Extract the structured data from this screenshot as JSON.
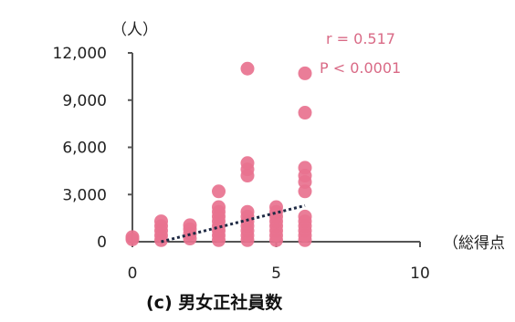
{
  "chart_data": {
    "type": "scatter",
    "title": "",
    "caption": "(c) 男女正社員数",
    "ylabel": "（人）",
    "xlabel": "（総得点",
    "xlim": [
      0,
      10
    ],
    "ylim": [
      0,
      12000
    ],
    "xticks": [
      "0",
      "5",
      "10"
    ],
    "yticks": [
      "0",
      "3,000",
      "6,000",
      "9,000",
      "12,000"
    ],
    "grid": false,
    "annotations": [
      "r = 0.517",
      "P < 0.0001"
    ],
    "series": [
      {
        "points": [
          [
            0,
            150
          ],
          [
            0,
            300
          ],
          [
            1,
            100
          ],
          [
            1,
            400
          ],
          [
            1,
            700
          ],
          [
            1,
            1000
          ],
          [
            1,
            1300
          ],
          [
            2,
            200
          ],
          [
            2,
            500
          ],
          [
            2,
            800
          ],
          [
            2,
            1050
          ],
          [
            3,
            100
          ],
          [
            3,
            400
          ],
          [
            3,
            700
          ],
          [
            3,
            1000
          ],
          [
            3,
            1300
          ],
          [
            3,
            1600
          ],
          [
            3,
            1900
          ],
          [
            3,
            2200
          ],
          [
            3,
            3200
          ],
          [
            4,
            100
          ],
          [
            4,
            400
          ],
          [
            4,
            700
          ],
          [
            4,
            1000
          ],
          [
            4,
            1300
          ],
          [
            4,
            1600
          ],
          [
            4,
            1900
          ],
          [
            4,
            4200
          ],
          [
            4,
            4600
          ],
          [
            4,
            5000
          ],
          [
            4,
            11000
          ],
          [
            5,
            100
          ],
          [
            5,
            400
          ],
          [
            5,
            700
          ],
          [
            5,
            1000
          ],
          [
            5,
            1300
          ],
          [
            5,
            1600
          ],
          [
            5,
            1900
          ],
          [
            5,
            2200
          ],
          [
            6,
            100
          ],
          [
            6,
            400
          ],
          [
            6,
            700
          ],
          [
            6,
            1000
          ],
          [
            6,
            1300
          ],
          [
            6,
            1600
          ],
          [
            6,
            3200
          ],
          [
            6,
            3800
          ],
          [
            6,
            4200
          ],
          [
            6,
            4700
          ],
          [
            6,
            8200
          ],
          [
            6,
            10700
          ]
        ],
        "color": "#e8728f"
      }
    ],
    "trendline": {
      "x": [
        1,
        6
      ],
      "y": [
        0,
        2300
      ],
      "color": "#1f2a44",
      "style": "dashed"
    }
  }
}
